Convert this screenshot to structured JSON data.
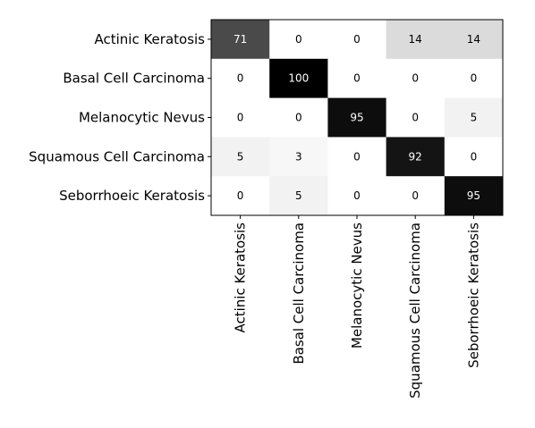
{
  "chart_data": {
    "type": "heatmap",
    "rows": [
      "Actinic Keratosis",
      "Basal Cell Carcinoma",
      "Melanocytic Nevus",
      "Squamous Cell Carcinoma",
      "Seborrhoeic Keratosis"
    ],
    "columns": [
      "Actinic Keratosis",
      "Basal Cell Carcinoma",
      "Melanocytic Nevus",
      "Squamous Cell Carcinoma",
      "Seborrhoeic Keratosis"
    ],
    "values": [
      [
        71,
        0,
        0,
        14,
        14
      ],
      [
        0,
        100,
        0,
        0,
        0
      ],
      [
        0,
        0,
        95,
        0,
        5
      ],
      [
        5,
        3,
        0,
        92,
        0
      ],
      [
        0,
        5,
        0,
        0,
        95
      ]
    ],
    "value_range": [
      0,
      100
    ],
    "colormap": "white-to-black",
    "grid": false,
    "legend": "none"
  }
}
